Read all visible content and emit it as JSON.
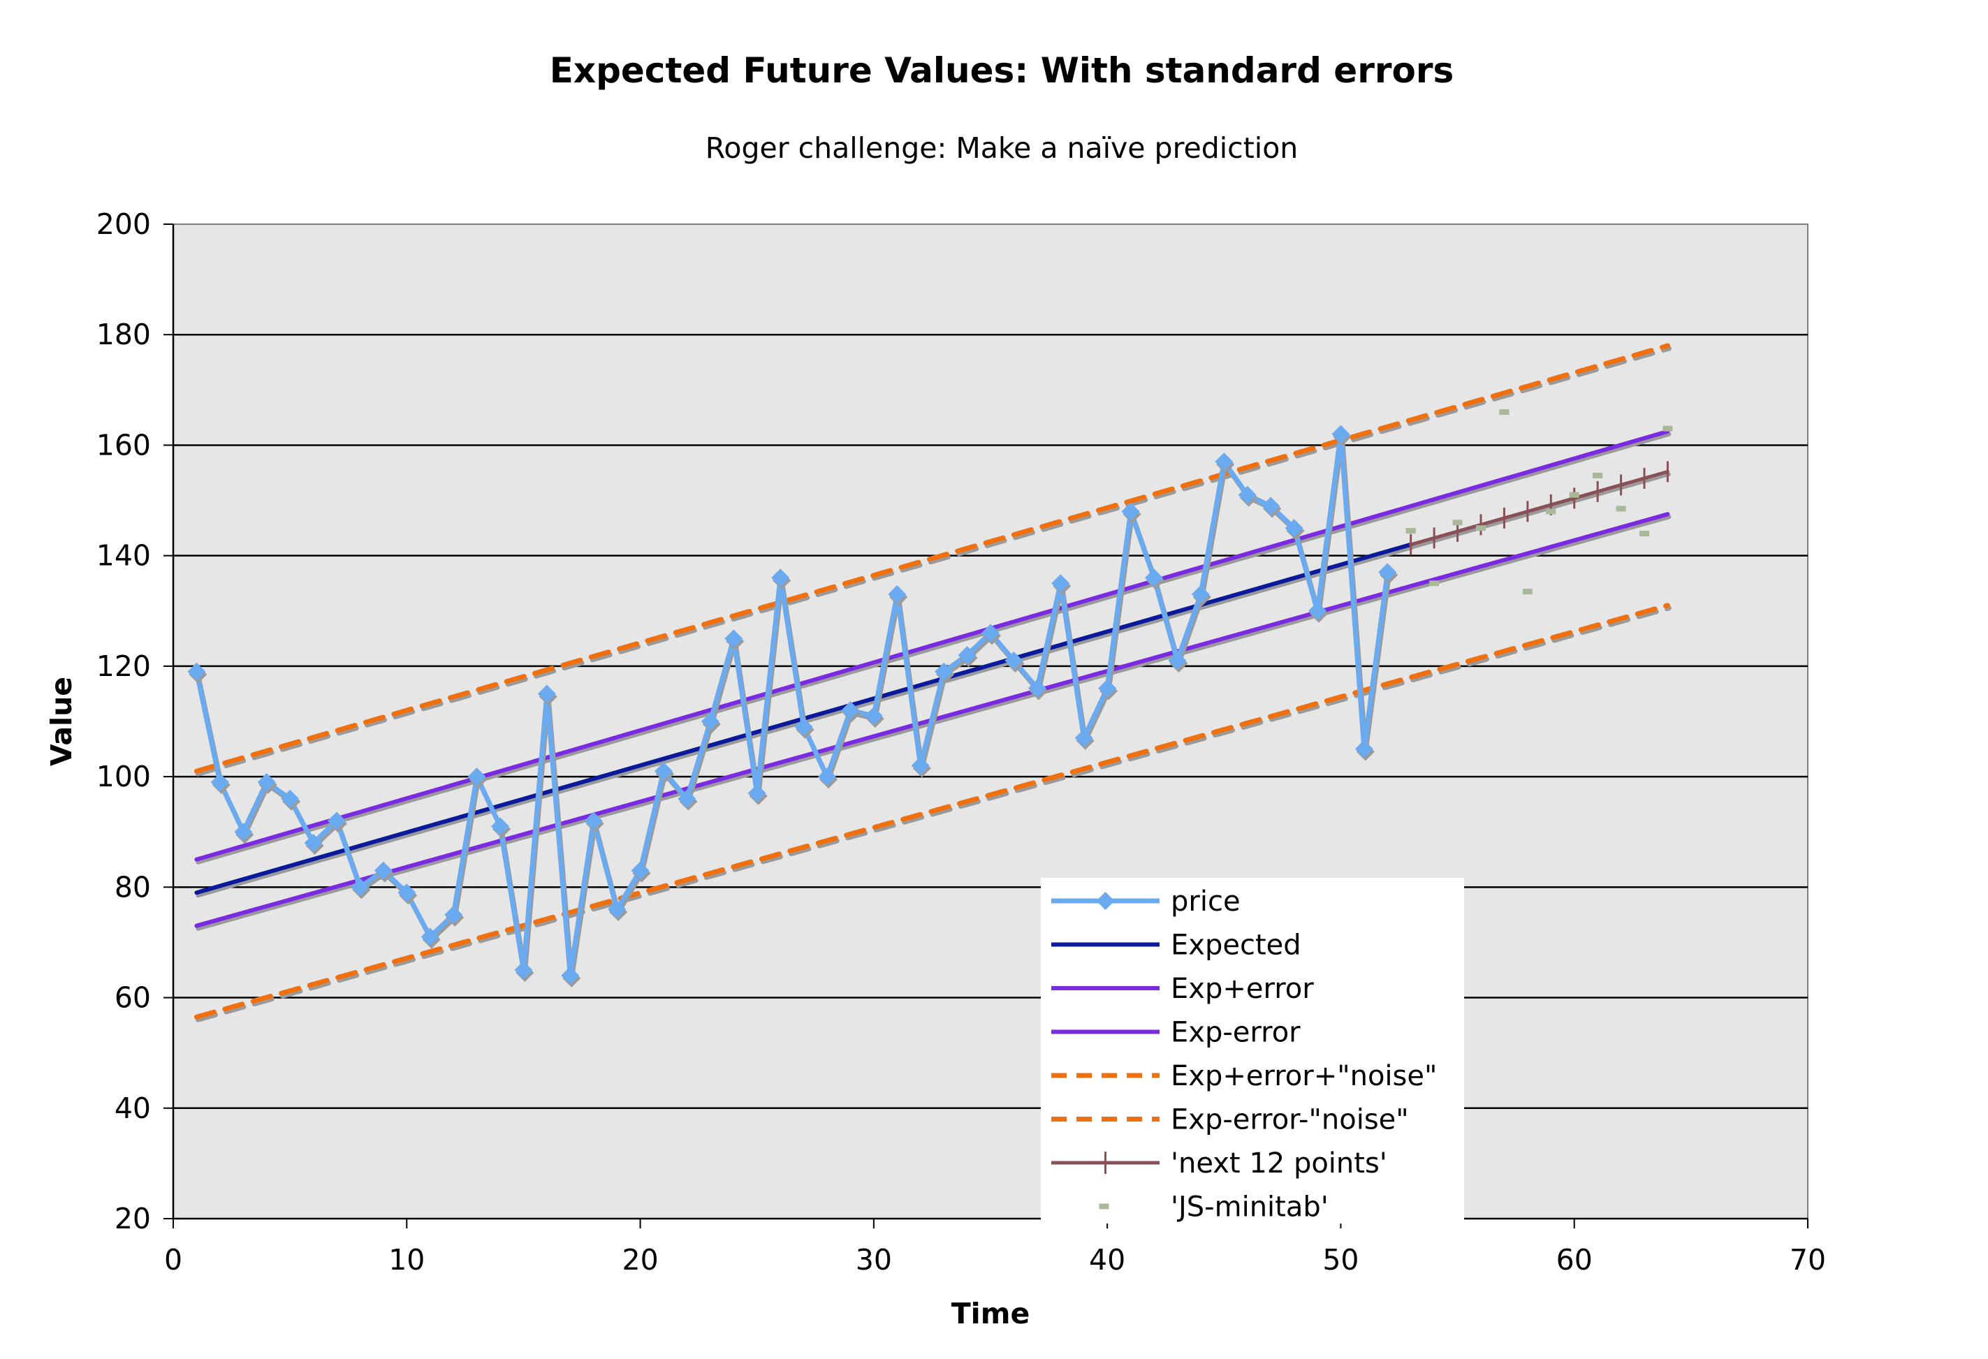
{
  "chart_data": {
    "type": "line",
    "title": "Expected Future Values: With standard errors",
    "subtitle": "Roger challenge: Make a naïve prediction",
    "xlabel": "Time",
    "ylabel": "Value",
    "xlim": [
      0,
      70
    ],
    "ylim": [
      20,
      200
    ],
    "x_ticks": [
      "0",
      "10",
      "20",
      "30",
      "40",
      "50",
      "60",
      "70"
    ],
    "y_ticks": [
      "20",
      "40",
      "60",
      "80",
      "100",
      "120",
      "140",
      "160",
      "180",
      "200"
    ],
    "grid": "horizontal",
    "legend_position": "bottom-right",
    "colors": {
      "plot_bg": "#e6e6e6",
      "price": "#6aaaf0",
      "expected": "#0a1a9a",
      "exp_error": "#7a2ae0",
      "noise": "#f07010",
      "next12": "#8a5058",
      "minitab": "#a8b898"
    },
    "series": [
      {
        "name": "price",
        "style": "line-diamond",
        "x": [
          1,
          2,
          3,
          4,
          5,
          6,
          7,
          8,
          9,
          10,
          11,
          12,
          13,
          14,
          15,
          16,
          17,
          18,
          19,
          20,
          21,
          22,
          23,
          24,
          25,
          26,
          27,
          28,
          29,
          30,
          31,
          32,
          33,
          34,
          35,
          36,
          37,
          38,
          39,
          40,
          41,
          42,
          43,
          44,
          45,
          46,
          47,
          48,
          49,
          50,
          51,
          52
        ],
        "y": [
          119,
          99,
          90,
          99,
          96,
          88,
          92,
          80,
          83,
          79,
          71,
          75,
          100,
          91,
          65,
          115,
          64,
          92,
          76,
          83,
          101,
          96,
          110,
          125,
          97,
          136,
          109,
          100,
          112,
          111,
          133,
          102,
          119,
          122,
          126,
          121,
          116,
          135,
          107,
          116,
          148,
          136,
          121,
          133,
          157,
          151,
          149,
          145,
          130,
          162,
          105,
          137
        ]
      },
      {
        "name": "Expected",
        "style": "line",
        "x": [
          1,
          53
        ],
        "y": [
          79,
          142
        ]
      },
      {
        "name": "Exp+error",
        "style": "line",
        "x": [
          1,
          64
        ],
        "y": [
          85,
          162.5
        ]
      },
      {
        "name": "Exp-error",
        "style": "line",
        "x": [
          1,
          64
        ],
        "y": [
          73,
          147.5
        ]
      },
      {
        "name": "Exp+error+\"noise\"",
        "style": "dashed",
        "x": [
          1,
          64
        ],
        "y": [
          101,
          178
        ]
      },
      {
        "name": "Exp-error-\"noise\"",
        "style": "dashed",
        "x": [
          1,
          64
        ],
        "y": [
          56.5,
          131
        ]
      },
      {
        "name": "'next 12 points'",
        "style": "line-plus",
        "x": [
          53,
          54,
          55,
          56,
          57,
          58,
          59,
          60,
          61,
          62,
          63,
          64
        ],
        "y": [
          142,
          143.2,
          144.4,
          145.6,
          146.8,
          148,
          149.2,
          150.4,
          151.6,
          152.8,
          154,
          155.2
        ]
      },
      {
        "name": "'JS-minitab'",
        "style": "markers",
        "x": [
          53,
          54,
          55,
          56,
          57,
          58,
          59,
          60,
          61,
          62,
          63,
          64
        ],
        "y": [
          144.5,
          135,
          146,
          145,
          166,
          133.5,
          148,
          151,
          154.5,
          148.5,
          144,
          163
        ]
      }
    ]
  }
}
